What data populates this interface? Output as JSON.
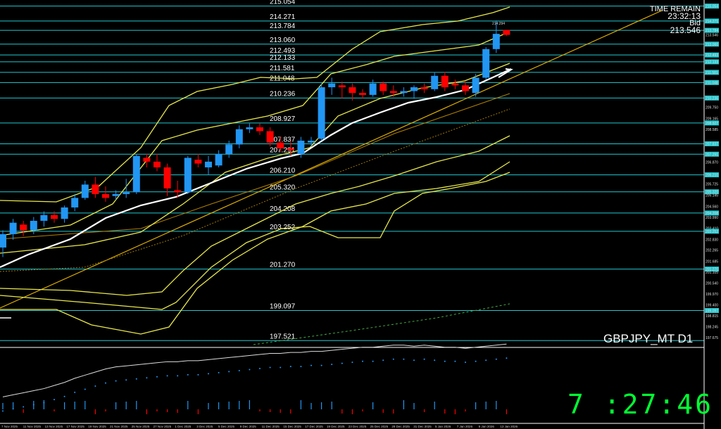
{
  "symbol": "GBPJPY_MT D1",
  "info": {
    "time_remain_label": "TIME REMAIN",
    "time_remain": "23:32:13",
    "bid_label": "Bid",
    "bid": "213.546"
  },
  "clock": "7 :27:46",
  "last_high_label": "214.294",
  "colors": {
    "bull": "#2196f3",
    "bear": "#ff0000",
    "level": "#20c8d0",
    "band": "#e8e84a",
    "ma_white": "#ffffff",
    "trend": "#e0b000"
  },
  "chart_data": {
    "type": "candlestick",
    "title": "GBPJPY_MT D1",
    "ylim": [
      197.2,
      215.3
    ],
    "levels": [
      215.054,
      214.271,
      213.784,
      213.06,
      212.493,
      212.133,
      211.581,
      211.048,
      210.236,
      208.927,
      207.837,
      207.291,
      206.21,
      205.32,
      204.208,
      203.252,
      201.27,
      199.097,
      197.521
    ],
    "price_axis_ticks": [
      "215.054",
      "214.271",
      "213.784",
      "213.546",
      "213.060",
      "212.493",
      "212.133",
      "211.581",
      "211.048",
      "210.236",
      "209.750",
      "209.165",
      "208.927",
      "208.585",
      "207.837",
      "207.291",
      "206.870",
      "206.210",
      "205.725",
      "205.320",
      "205.145",
      "204.560",
      "204.208",
      "203.990",
      "203.410",
      "203.252",
      "202.830",
      "202.265",
      "201.685",
      "201.270",
      "201.105",
      "200.540",
      "199.970",
      "199.400",
      "199.097",
      "198.815",
      "198.245",
      "197.675"
    ],
    "x_ticks": [
      "7 Nov 2025",
      "11 Nov 2025",
      "13 Nov 2025",
      "17 Nov 2025",
      "19 Nov 2025",
      "21 Nov 2025",
      "25 Nov 2025",
      "27 Nov 2025",
      "1 Dec 2025",
      "3 Dec 2025",
      "5 Dec 2025",
      "9 Dec 2025",
      "11 Dec 2025",
      "15 Dec 2025",
      "17 Dec 2025",
      "19 Dec 2025",
      "23 Dec 2025",
      "25 Dec 2025",
      "29 Dec 2025",
      "31 Dec 2025",
      "5 Jan 2026",
      "7 Jan 2026",
      "9 Jan 2026",
      "13 Jan 2026"
    ],
    "candles": [
      {
        "o": 202.4,
        "h": 203.3,
        "l": 201.9,
        "c": 203.1
      },
      {
        "o": 203.1,
        "h": 203.9,
        "l": 202.8,
        "c": 203.7
      },
      {
        "o": 203.6,
        "h": 203.8,
        "l": 203.0,
        "c": 203.3
      },
      {
        "o": 203.3,
        "h": 204.0,
        "l": 203.1,
        "c": 203.8
      },
      {
        "o": 203.8,
        "h": 204.3,
        "l": 203.5,
        "c": 204.1
      },
      {
        "o": 204.1,
        "h": 204.3,
        "l": 203.7,
        "c": 203.9
      },
      {
        "o": 203.9,
        "h": 204.6,
        "l": 203.7,
        "c": 204.5
      },
      {
        "o": 204.5,
        "h": 205.2,
        "l": 204.3,
        "c": 205.0
      },
      {
        "o": 205.0,
        "h": 205.9,
        "l": 204.9,
        "c": 205.7
      },
      {
        "o": 205.7,
        "h": 206.1,
        "l": 205.0,
        "c": 205.2
      },
      {
        "o": 205.2,
        "h": 205.6,
        "l": 204.8,
        "c": 205.0
      },
      {
        "o": 205.1,
        "h": 205.4,
        "l": 204.9,
        "c": 205.2
      },
      {
        "o": 205.2,
        "h": 206.0,
        "l": 205.0,
        "c": 205.3
      },
      {
        "o": 205.3,
        "h": 207.3,
        "l": 205.2,
        "c": 207.2
      },
      {
        "o": 207.1,
        "h": 207.3,
        "l": 206.6,
        "c": 206.9
      },
      {
        "o": 206.9,
        "h": 207.3,
        "l": 206.4,
        "c": 206.6
      },
      {
        "o": 206.6,
        "h": 206.8,
        "l": 205.1,
        "c": 205.5
      },
      {
        "o": 205.4,
        "h": 205.9,
        "l": 205.0,
        "c": 205.3
      },
      {
        "o": 205.3,
        "h": 207.2,
        "l": 205.2,
        "c": 207.1
      },
      {
        "o": 207.0,
        "h": 207.3,
        "l": 206.6,
        "c": 206.8
      },
      {
        "o": 206.6,
        "h": 207.2,
        "l": 206.2,
        "c": 206.9
      },
      {
        "o": 206.7,
        "h": 207.5,
        "l": 206.6,
        "c": 207.3
      },
      {
        "o": 207.3,
        "h": 208.0,
        "l": 207.1,
        "c": 207.8
      },
      {
        "o": 207.8,
        "h": 208.8,
        "l": 207.6,
        "c": 208.6
      },
      {
        "o": 208.6,
        "h": 208.9,
        "l": 208.4,
        "c": 208.7
      },
      {
        "o": 208.7,
        "h": 208.9,
        "l": 208.3,
        "c": 208.5
      },
      {
        "o": 208.5,
        "h": 208.7,
        "l": 207.7,
        "c": 207.9
      },
      {
        "o": 207.9,
        "h": 208.2,
        "l": 207.4,
        "c": 207.6
      },
      {
        "o": 207.6,
        "h": 208.0,
        "l": 207.2,
        "c": 207.5
      },
      {
        "o": 207.3,
        "h": 208.2,
        "l": 207.1,
        "c": 208.0
      },
      {
        "o": 207.9,
        "h": 208.2,
        "l": 207.7,
        "c": 208.0
      },
      {
        "o": 208.1,
        "h": 211.0,
        "l": 208.0,
        "c": 210.8
      },
      {
        "o": 210.8,
        "h": 211.3,
        "l": 210.4,
        "c": 211.0
      },
      {
        "o": 210.9,
        "h": 211.1,
        "l": 210.2,
        "c": 210.8
      },
      {
        "o": 210.8,
        "h": 211.0,
        "l": 210.1,
        "c": 210.5
      },
      {
        "o": 210.5,
        "h": 210.7,
        "l": 210.2,
        "c": 210.4
      },
      {
        "o": 210.4,
        "h": 211.2,
        "l": 210.3,
        "c": 211.0
      },
      {
        "o": 211.0,
        "h": 211.1,
        "l": 210.4,
        "c": 210.6
      },
      {
        "o": 210.6,
        "h": 210.9,
        "l": 210.3,
        "c": 210.5
      },
      {
        "o": 210.5,
        "h": 210.8,
        "l": 210.3,
        "c": 210.6
      },
      {
        "o": 210.6,
        "h": 210.9,
        "l": 210.2,
        "c": 210.8
      },
      {
        "o": 210.8,
        "h": 211.0,
        "l": 210.5,
        "c": 210.7
      },
      {
        "o": 210.7,
        "h": 211.6,
        "l": 210.6,
        "c": 211.4
      },
      {
        "o": 211.4,
        "h": 211.6,
        "l": 210.6,
        "c": 210.8
      },
      {
        "o": 211.0,
        "h": 211.2,
        "l": 210.7,
        "c": 210.9
      },
      {
        "o": 210.9,
        "h": 211.1,
        "l": 210.4,
        "c": 210.6
      },
      {
        "o": 210.5,
        "h": 211.5,
        "l": 210.3,
        "c": 211.3
      },
      {
        "o": 211.3,
        "h": 212.9,
        "l": 211.2,
        "c": 212.8
      },
      {
        "o": 212.8,
        "h": 214.3,
        "l": 212.6,
        "c": 213.6
      },
      {
        "o": 213.8,
        "h": 213.8,
        "l": 213.5,
        "c": 213.546
      }
    ],
    "indicator": {
      "type": "oscillator",
      "values": [
        12,
        14,
        16,
        18,
        20,
        23,
        26,
        30,
        33,
        36,
        39,
        41,
        42,
        43,
        44,
        45,
        46,
        46,
        47,
        47,
        48,
        49,
        50,
        51,
        52,
        53,
        54,
        54,
        55,
        55,
        56,
        56,
        57,
        58,
        59,
        60,
        60,
        61,
        62,
        62,
        61,
        62,
        61,
        60,
        60,
        59,
        60,
        61,
        62,
        63
      ]
    }
  }
}
